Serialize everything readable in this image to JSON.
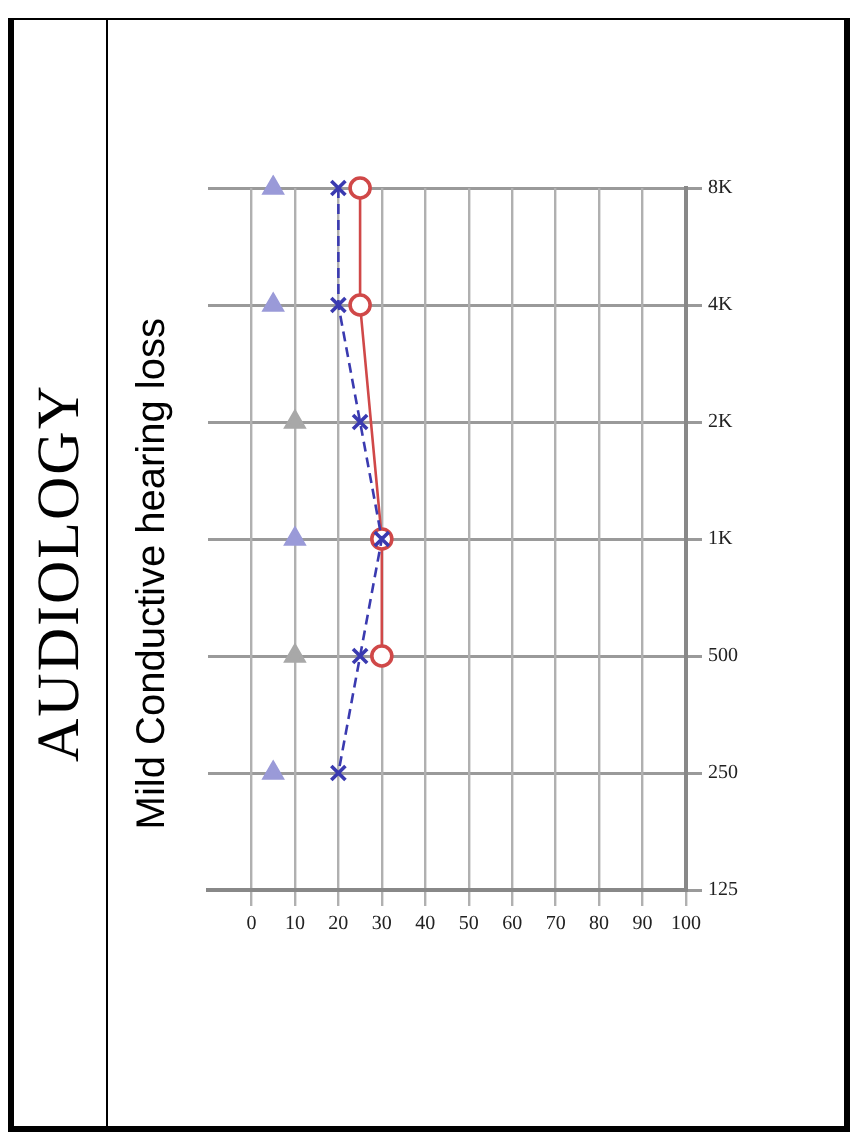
{
  "chart_data": {
    "type": "line",
    "orientation": "horizontal",
    "title": "AUDIOLOGY",
    "subtitle": "Mild Conductive hearing loss",
    "categories": [
      "8K",
      "4K",
      "2K",
      "1K",
      "500",
      "250",
      "125"
    ],
    "xlim": [
      -10,
      100
    ],
    "xticks": [
      0,
      10,
      20,
      30,
      40,
      50,
      60,
      70,
      80,
      90,
      100
    ],
    "grid": true,
    "legend": false,
    "series": [
      {
        "type": "line",
        "color": "#3a3ab0",
        "marker": "cross",
        "line_style": "dashed",
        "values": [
          20,
          20,
          25,
          30,
          25,
          20,
          null
        ]
      },
      {
        "type": "line",
        "color": "#d04848",
        "marker": "circle",
        "line_style": "solid",
        "values": [
          25,
          25,
          null,
          30,
          30,
          null,
          null
        ]
      },
      {
        "type": "scatter",
        "color": "#9a9ad8",
        "marker": "triangle",
        "values": [
          5,
          5,
          null,
          10,
          null,
          5,
          null
        ]
      },
      {
        "type": "scatter",
        "color": "#a8a8a8",
        "marker": "triangle",
        "values": [
          null,
          null,
          10,
          null,
          10,
          null,
          null
        ]
      }
    ]
  }
}
